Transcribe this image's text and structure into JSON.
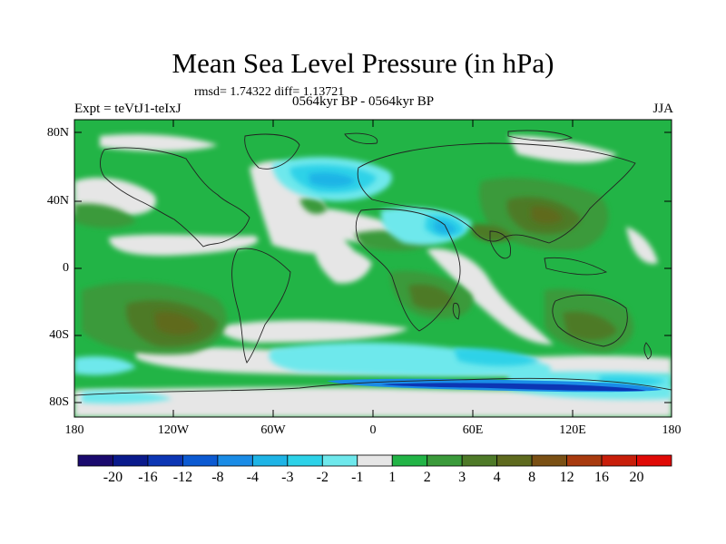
{
  "map": {
    "title": "Mean Sea Level Pressure (in hPa)",
    "stats": "rmsd= 1.74322 diff= 1.13721",
    "experiment": "Expt = teVtJ1-teIxJ",
    "period": "0564kyr BP - 0564kyr BP",
    "season": "JJA",
    "lat_ticks": [
      "80N",
      "40N",
      "0",
      "40S",
      "80S"
    ],
    "lon_ticks": [
      "180",
      "120W",
      "60W",
      "0",
      "60E",
      "120E",
      "180"
    ]
  },
  "legend": {
    "labels": [
      "-20",
      "-16",
      "-12",
      "-8",
      "-4",
      "-3",
      "-2",
      "-1",
      "1",
      "2",
      "3",
      "4",
      "8",
      "12",
      "16",
      "20"
    ],
    "colors": [
      "#1a0a6e",
      "#0a1a8c",
      "#0c36b4",
      "#0c5ad2",
      "#1a8ce6",
      "#1eb4e6",
      "#2dd2e8",
      "#6ee8ec",
      "#e6e6e6",
      "#22b446",
      "#3a9a3a",
      "#4e7a28",
      "#5e6a1e",
      "#7a5014",
      "#a83a0e",
      "#c81e0a",
      "#e00a06"
    ]
  }
}
